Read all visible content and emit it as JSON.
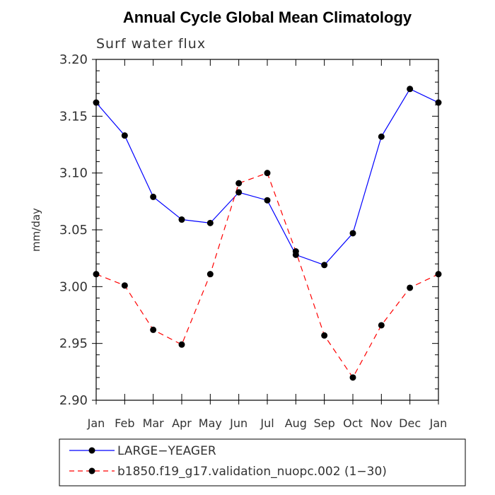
{
  "chart_data": {
    "type": "line",
    "title": "Annual Cycle Global Mean Climatology",
    "subtitle": "Surf water flux",
    "xlabel": "",
    "ylabel": "mm/day",
    "categories": [
      "Jan",
      "Feb",
      "Mar",
      "Apr",
      "May",
      "Jun",
      "Jul",
      "Aug",
      "Sep",
      "Oct",
      "Nov",
      "Dec",
      "Jan"
    ],
    "ylim": [
      2.9,
      3.2
    ],
    "yticks": [
      "2.90",
      "2.95",
      "3.00",
      "3.05",
      "3.10",
      "3.15",
      "3.20"
    ],
    "ytick_values": [
      2.9,
      2.95,
      3.0,
      3.05,
      3.1,
      3.15,
      3.2
    ],
    "grid": false,
    "legend_position": "bottom",
    "series": [
      {
        "name": "LARGE−YEAGER",
        "color": "#0000ff",
        "style": "solid",
        "values": [
          3.162,
          3.133,
          3.079,
          3.059,
          3.056,
          3.083,
          3.076,
          3.028,
          3.019,
          3.047,
          3.132,
          3.174,
          3.162
        ]
      },
      {
        "name": "b1850.f19_g17.validation_nuopc.002 (1−30)",
        "color": "#ff0000",
        "style": "dashed",
        "values": [
          3.011,
          3.001,
          2.962,
          2.949,
          3.011,
          3.091,
          3.1,
          3.031,
          2.957,
          2.92,
          2.966,
          2.999,
          3.011
        ]
      }
    ]
  }
}
